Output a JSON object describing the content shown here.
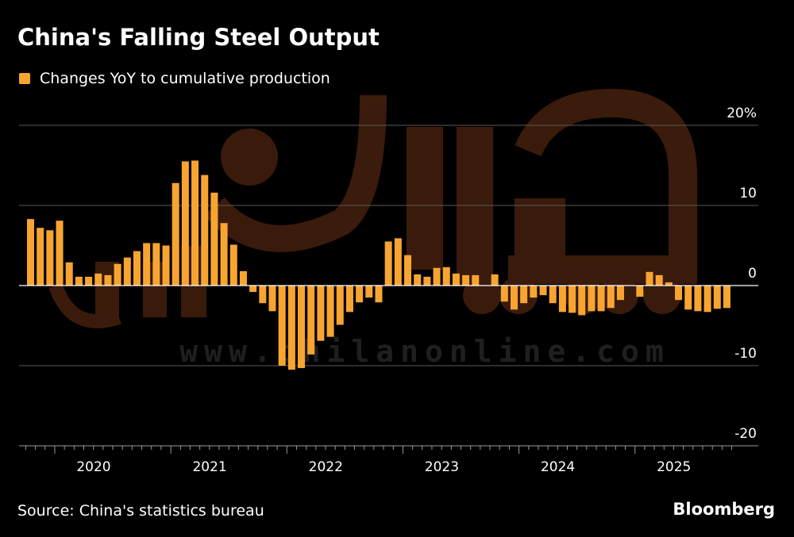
{
  "title": "China's Falling Steel Output",
  "legend": "Changes YoY to cumulative production",
  "source": "Source: China's statistics bureau",
  "brand": "Bloomberg",
  "watermark": "www.chilanonline.com",
  "colors": {
    "bar": "#f7a530",
    "background": "#000000",
    "grid": "#5a5a5a",
    "zero": "#ffffff",
    "watermark": "#6b3214"
  },
  "chart_data": {
    "type": "bar",
    "title": "China's Falling Steel Output",
    "series": [
      {
        "name": "Changes YoY to cumulative production",
        "values": [
          8.3,
          7.2,
          6.9,
          8.1,
          2.9,
          1.1,
          1.1,
          1.5,
          1.3,
          2.7,
          3.5,
          4.3,
          5.3,
          5.3,
          5.0,
          12.8,
          15.5,
          15.6,
          13.8,
          11.6,
          7.8,
          5.1,
          1.8,
          -0.8,
          -2.2,
          -3.2,
          -10.0,
          -10.5,
          -10.3,
          -8.6,
          -6.9,
          -6.4,
          -4.9,
          -3.3,
          -2.1,
          -1.5,
          -2.1,
          5.5,
          5.9,
          3.8,
          1.4,
          1.1,
          2.2,
          2.3,
          1.5,
          1.3,
          1.3,
          0,
          1.4,
          -2.0,
          -3.0,
          -2.2,
          -1.5,
          -1.2,
          -2.2,
          -3.3,
          -3.4,
          -3.7,
          -3.2,
          -3.2,
          -2.8,
          -1.8,
          0,
          -1.4,
          1.7,
          1.3,
          0.4,
          -1.8,
          -3.0,
          -3.2,
          -3.3,
          -2.9,
          -2.8
        ],
        "first_month": "2019-10"
      }
    ],
    "xlabel": "",
    "ylabel": "",
    "ylim": [
      -20,
      20
    ],
    "y_ticks": [
      20,
      10,
      0,
      -10,
      -20
    ],
    "y_tick_labels": [
      "20%",
      "10",
      "0",
      "-10",
      "-20"
    ],
    "x_tick_labels": [
      "2020",
      "2021",
      "2022",
      "2023",
      "2024",
      "2025"
    ],
    "grid": true,
    "legend_position": "top-left"
  }
}
